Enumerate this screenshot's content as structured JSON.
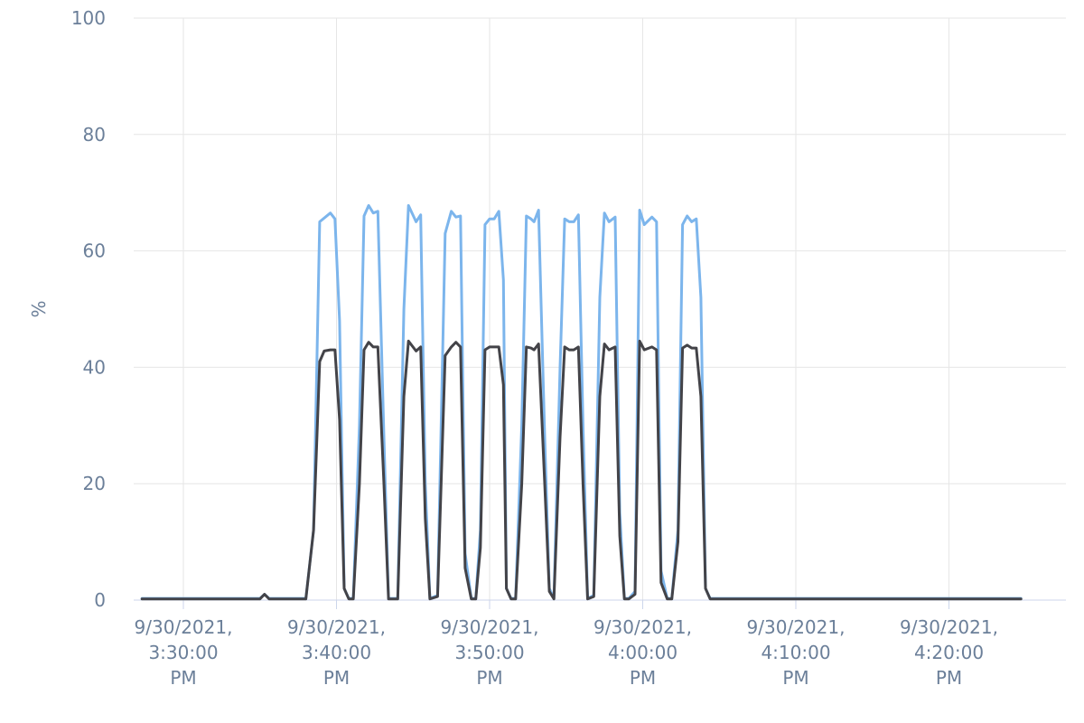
{
  "chart_data": {
    "type": "line",
    "title": "",
    "xlabel": "",
    "ylabel": "%",
    "ylim": [
      0,
      100
    ],
    "y_ticks": [
      0,
      20,
      40,
      60,
      80,
      100
    ],
    "x_range_minutes": [
      -5,
      55
    ],
    "x_ticks": [
      {
        "minute": 0,
        "lines": [
          "9/30/2021,",
          "3:30:00",
          "PM"
        ]
      },
      {
        "minute": 10,
        "lines": [
          "9/30/2021,",
          "3:40:00",
          "PM"
        ]
      },
      {
        "minute": 20,
        "lines": [
          "9/30/2021,",
          "3:50:00",
          "PM"
        ]
      },
      {
        "minute": 30,
        "lines": [
          "9/30/2021,",
          "4:00:00",
          "PM"
        ]
      },
      {
        "minute": 40,
        "lines": [
          "9/30/2021,",
          "4:10:00",
          "PM"
        ]
      },
      {
        "minute": 50,
        "lines": [
          "9/30/2021,",
          "4:20:00",
          "PM"
        ]
      }
    ],
    "grid": true,
    "legend": "none",
    "series": [
      {
        "color": "#7cb5ec",
        "points": [
          [
            -2.7,
            0.3
          ],
          [
            5,
            0.3
          ],
          [
            5.3,
            1
          ],
          [
            5.6,
            0.3
          ],
          [
            8,
            0.3
          ],
          [
            8.5,
            12
          ],
          [
            8.9,
            65
          ],
          [
            9.6,
            66.5
          ],
          [
            9.9,
            65.5
          ],
          [
            10.2,
            48
          ],
          [
            10.5,
            2
          ],
          [
            10.8,
            0.3
          ],
          [
            11.1,
            0.3
          ],
          [
            11.5,
            30
          ],
          [
            11.8,
            66
          ],
          [
            12.1,
            67.8
          ],
          [
            12.4,
            66.5
          ],
          [
            12.7,
            66.8
          ],
          [
            13.1,
            28
          ],
          [
            13.4,
            0.3
          ],
          [
            14,
            0.3
          ],
          [
            14.4,
            50
          ],
          [
            14.7,
            67.8
          ],
          [
            15.2,
            65
          ],
          [
            15.5,
            66.2
          ],
          [
            15.8,
            20
          ],
          [
            16.1,
            0.3
          ],
          [
            16.6,
            0.8
          ],
          [
            17.1,
            63
          ],
          [
            17.5,
            66.8
          ],
          [
            17.8,
            65.8
          ],
          [
            18.1,
            66
          ],
          [
            18.4,
            8
          ],
          [
            18.8,
            0.3
          ],
          [
            19.1,
            0.3
          ],
          [
            19.4,
            12
          ],
          [
            19.7,
            64.5
          ],
          [
            20,
            65.5
          ],
          [
            20.3,
            65.5
          ],
          [
            20.6,
            66.8
          ],
          [
            20.9,
            55
          ],
          [
            21.1,
            2
          ],
          [
            21.4,
            0.3
          ],
          [
            21.7,
            0.3
          ],
          [
            22.1,
            30
          ],
          [
            22.4,
            66
          ],
          [
            22.7,
            65.5
          ],
          [
            22.9,
            65
          ],
          [
            23.2,
            67
          ],
          [
            23.6,
            28
          ],
          [
            23.9,
            2
          ],
          [
            24.2,
            0.3
          ],
          [
            24.6,
            40
          ],
          [
            24.9,
            65.5
          ],
          [
            25.2,
            65
          ],
          [
            25.5,
            65
          ],
          [
            25.8,
            66.2
          ],
          [
            26.1,
            30
          ],
          [
            26.4,
            0.3
          ],
          [
            26.8,
            0.8
          ],
          [
            27.2,
            52
          ],
          [
            27.5,
            66.5
          ],
          [
            27.8,
            65
          ],
          [
            28.2,
            65.8
          ],
          [
            28.5,
            15
          ],
          [
            28.8,
            0.3
          ],
          [
            29.1,
            0.3
          ],
          [
            29.5,
            1.5
          ],
          [
            29.8,
            67
          ],
          [
            30.1,
            64.5
          ],
          [
            30.6,
            65.8
          ],
          [
            30.9,
            65
          ],
          [
            31.2,
            5
          ],
          [
            31.6,
            0.3
          ],
          [
            31.9,
            0.3
          ],
          [
            32.3,
            12
          ],
          [
            32.6,
            64.5
          ],
          [
            32.9,
            66
          ],
          [
            33.2,
            65
          ],
          [
            33.5,
            65.5
          ],
          [
            33.8,
            52
          ],
          [
            34.1,
            2
          ],
          [
            34.4,
            0.3
          ],
          [
            54.7,
            0.3
          ]
        ]
      },
      {
        "color": "#434348",
        "points": [
          [
            -2.7,
            0.2
          ],
          [
            5,
            0.2
          ],
          [
            5.3,
            1
          ],
          [
            5.6,
            0.2
          ],
          [
            8,
            0.2
          ],
          [
            8.5,
            12
          ],
          [
            8.9,
            41
          ],
          [
            9.2,
            42.8
          ],
          [
            9.6,
            43
          ],
          [
            9.9,
            43
          ],
          [
            10.2,
            31
          ],
          [
            10.5,
            2
          ],
          [
            10.8,
            0.2
          ],
          [
            11.1,
            0.2
          ],
          [
            11.5,
            20
          ],
          [
            11.8,
            43
          ],
          [
            12.1,
            44.3
          ],
          [
            12.4,
            43.5
          ],
          [
            12.7,
            43.5
          ],
          [
            13.1,
            20
          ],
          [
            13.4,
            0.2
          ],
          [
            14,
            0.2
          ],
          [
            14.4,
            35
          ],
          [
            14.7,
            44.5
          ],
          [
            15.2,
            42.8
          ],
          [
            15.5,
            43.5
          ],
          [
            15.8,
            14
          ],
          [
            16.1,
            0.2
          ],
          [
            16.6,
            0.6
          ],
          [
            17.1,
            42
          ],
          [
            17.5,
            43.5
          ],
          [
            17.8,
            44.3
          ],
          [
            18.1,
            43.5
          ],
          [
            18.4,
            5.5
          ],
          [
            18.8,
            0.2
          ],
          [
            19.1,
            0.2
          ],
          [
            19.4,
            9
          ],
          [
            19.7,
            43
          ],
          [
            20,
            43.5
          ],
          [
            20.3,
            43.5
          ],
          [
            20.6,
            43.5
          ],
          [
            20.9,
            37
          ],
          [
            21.1,
            2
          ],
          [
            21.4,
            0.2
          ],
          [
            21.7,
            0.2
          ],
          [
            22.1,
            20
          ],
          [
            22.4,
            43.5
          ],
          [
            22.7,
            43.3
          ],
          [
            22.9,
            43
          ],
          [
            23.2,
            44
          ],
          [
            23.6,
            20
          ],
          [
            23.9,
            1.5
          ],
          [
            24.2,
            0.2
          ],
          [
            24.6,
            28
          ],
          [
            24.9,
            43.5
          ],
          [
            25.2,
            43
          ],
          [
            25.5,
            43
          ],
          [
            25.8,
            43.5
          ],
          [
            26.1,
            20
          ],
          [
            26.4,
            0.2
          ],
          [
            26.8,
            0.6
          ],
          [
            27.2,
            35
          ],
          [
            27.5,
            44
          ],
          [
            27.8,
            43
          ],
          [
            28.2,
            43.5
          ],
          [
            28.5,
            11
          ],
          [
            28.8,
            0.2
          ],
          [
            29.1,
            0.2
          ],
          [
            29.5,
            1
          ],
          [
            29.8,
            44.5
          ],
          [
            30.1,
            43
          ],
          [
            30.6,
            43.5
          ],
          [
            30.9,
            43
          ],
          [
            31.2,
            3
          ],
          [
            31.6,
            0.2
          ],
          [
            31.9,
            0.2
          ],
          [
            32.3,
            10
          ],
          [
            32.6,
            43.3
          ],
          [
            32.9,
            43.8
          ],
          [
            33.2,
            43.3
          ],
          [
            33.5,
            43.3
          ],
          [
            33.8,
            35
          ],
          [
            34.1,
            2
          ],
          [
            34.4,
            0.2
          ],
          [
            54.7,
            0.2
          ]
        ]
      }
    ]
  }
}
